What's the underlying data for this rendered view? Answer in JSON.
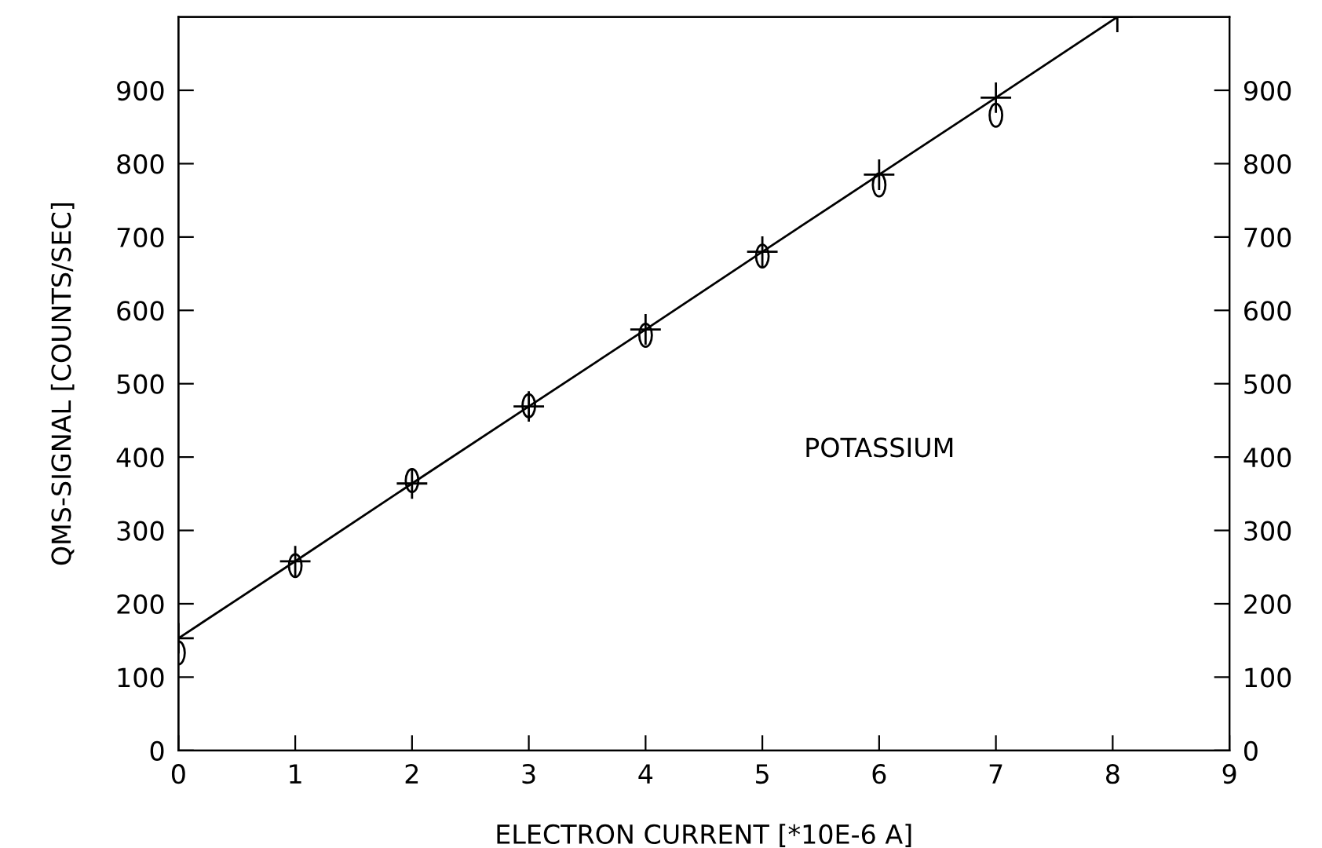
{
  "chart_data": {
    "type": "scatter",
    "xlabel": "ELECTRON CURRENT [*10E-6 A]",
    "ylabel": "QMS-SIGNAL [COUNTS/SEC]",
    "x": [
      0,
      1,
      2,
      3,
      4,
      5,
      6,
      7
    ],
    "series": [
      {
        "color": "#000000",
        "marker": "circle",
        "values": [
          133,
          252,
          368,
          470,
          566,
          674,
          771,
          866
        ]
      },
      {
        "type": "line",
        "color": "#000000",
        "marker": "cross",
        "line_style": "solid",
        "x": [
          0,
          1,
          2,
          3,
          4,
          5,
          6,
          7,
          8.04
        ],
        "values": [
          153,
          258,
          364,
          469,
          574,
          680,
          785,
          890,
          1000
        ]
      }
    ],
    "annotations": [
      "POTASSIUM"
    ],
    "xlim": [
      0,
      9
    ],
    "xticks": [
      0,
      1,
      2,
      3,
      4,
      5,
      6,
      7,
      8,
      9
    ],
    "ylim": [
      0,
      1000
    ],
    "yticks": [
      0,
      100,
      200,
      300,
      400,
      500,
      600,
      700,
      800,
      900
    ],
    "y2lim": [
      0,
      1000
    ],
    "y2ticks": [
      0,
      100,
      200,
      300,
      400,
      500,
      600,
      700,
      800,
      900
    ],
    "grid": false
  }
}
